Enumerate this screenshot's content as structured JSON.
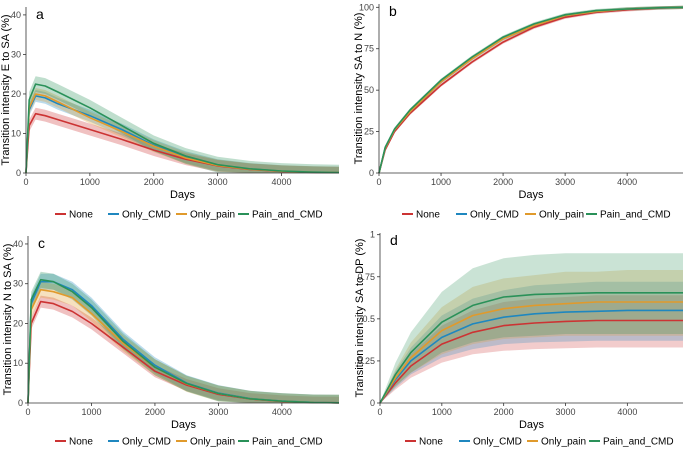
{
  "colors": {
    "None": "#cc3333",
    "Only_CMD": "#1f87bf",
    "Only_pain": "#e09a2c",
    "Pain_and_CMD": "#2a9159"
  },
  "chart_data": [
    {
      "type": "line",
      "panel": "a",
      "xlabel": "Days",
      "ylabel": "Transition intensity E to SA (%)",
      "xlim": [
        0,
        4900
      ],
      "ylim": [
        0,
        42
      ],
      "xticks": [
        0,
        1000,
        2000,
        3000,
        4000
      ],
      "yticks": [
        0,
        10,
        20,
        30,
        40
      ],
      "x": [
        0,
        50,
        150,
        300,
        500,
        1000,
        1500,
        2000,
        2500,
        3000,
        3500,
        4000,
        4500,
        4900
      ],
      "series": [
        {
          "name": "None",
          "values": [
            0,
            12,
            15,
            14.5,
            13.5,
            11,
            8.5,
            5.8,
            3.5,
            1.8,
            0.9,
            0.4,
            0.15,
            0.1
          ],
          "band": 1.5
        },
        {
          "name": "Only_CMD",
          "values": [
            0,
            16,
            19.5,
            19,
            17.5,
            14.5,
            11,
            7,
            4,
            2,
            1,
            0.45,
            0.2,
            0.1
          ],
          "band": 1.5
        },
        {
          "name": "Only_pain",
          "values": [
            0,
            16.5,
            20,
            19.5,
            18,
            14,
            10.5,
            6.8,
            3.8,
            1.9,
            0.95,
            0.45,
            0.2,
            0.1
          ],
          "band": 1.5
        },
        {
          "name": "Pain_and_CMD",
          "values": [
            0,
            18.5,
            22.5,
            22,
            20.5,
            16.5,
            12,
            7.5,
            4.3,
            2.1,
            1.05,
            0.5,
            0.2,
            0.1
          ],
          "band": 2
        }
      ]
    },
    {
      "type": "line",
      "panel": "b",
      "xlabel": "Days",
      "ylabel": "Transition intensity SA to N (%)",
      "xlim": [
        0,
        4900
      ],
      "ylim": [
        0,
        102
      ],
      "xticks": [
        0,
        1000,
        2000,
        3000,
        4000
      ],
      "yticks": [
        0,
        25,
        50,
        75,
        100
      ],
      "x": [
        0,
        100,
        250,
        500,
        1000,
        1500,
        2000,
        2500,
        3000,
        3500,
        4000,
        4500,
        4900
      ],
      "series": [
        {
          "name": "None",
          "values": [
            0,
            14,
            25,
            36,
            53,
            67,
            79,
            88,
            94,
            97,
            98.5,
            99.5,
            100
          ],
          "band": 1
        },
        {
          "name": "Only_CMD",
          "values": [
            0,
            15,
            26,
            37,
            55,
            69,
            81,
            89,
            95,
            97.5,
            99,
            99.7,
            100
          ],
          "band": 1
        },
        {
          "name": "Only_pain",
          "values": [
            0,
            15,
            26,
            37,
            55,
            69,
            81,
            89,
            95,
            97.5,
            99,
            99.7,
            100
          ],
          "band": 1
        },
        {
          "name": "Pain_and_CMD",
          "values": [
            0,
            15.5,
            26.5,
            38,
            56,
            70,
            82,
            90,
            95.5,
            98,
            99,
            99.7,
            100
          ],
          "band": 1
        }
      ]
    },
    {
      "type": "line",
      "panel": "c",
      "xlabel": "Days",
      "ylabel": "Transition intensity N to SA (%)",
      "xlim": [
        0,
        4900
      ],
      "ylim": [
        0,
        42
      ],
      "xticks": [
        0,
        1000,
        2000,
        3000,
        4000
      ],
      "yticks": [
        0,
        10,
        20,
        30,
        40
      ],
      "x": [
        0,
        50,
        200,
        400,
        700,
        1000,
        1500,
        2000,
        2500,
        3000,
        3500,
        4000,
        4500,
        4900
      ],
      "series": [
        {
          "name": "None",
          "values": [
            0,
            20,
            25.5,
            25,
            23,
            20,
            14,
            8,
            4.5,
            2.2,
            1,
            0.4,
            0.1,
            0.05
          ],
          "band": 1.5
        },
        {
          "name": "Only_CMD",
          "values": [
            0,
            25,
            30.5,
            30.5,
            28.5,
            24.5,
            16,
            9.5,
            5,
            2.5,
            1.1,
            0.5,
            0.15,
            0.05
          ],
          "band": 2
        },
        {
          "name": "Only_pain",
          "values": [
            0,
            23.5,
            28.5,
            28,
            26.5,
            22.5,
            15,
            9,
            4.8,
            2.4,
            1.05,
            0.45,
            0.12,
            0.05
          ],
          "band": 2
        },
        {
          "name": "Pain_and_CMD",
          "values": [
            0,
            26,
            31,
            30.5,
            28,
            24,
            15.5,
            9,
            4.9,
            2.4,
            1.05,
            0.45,
            0.12,
            0.05
          ],
          "band": 2
        }
      ]
    },
    {
      "type": "line",
      "panel": "d",
      "xlabel": "Days",
      "ylabel": "Transition intensity SA to DP (%)",
      "xlim": [
        0,
        4900
      ],
      "ylim": [
        0,
        1.01
      ],
      "xticks": [
        0,
        1000,
        2000,
        3000,
        4000
      ],
      "xtick_labels": [
        "0",
        "1000",
        "2000",
        "3000",
        "4000"
      ],
      "yticks": [
        0,
        0.25,
        0.5,
        0.75,
        1
      ],
      "ytick_labels": [
        "0",
        "0.25",
        "0.5",
        "0.75",
        "1"
      ],
      "x": [
        0,
        250,
        500,
        1000,
        1500,
        2000,
        2500,
        3000,
        3500,
        4000,
        4500,
        4900
      ],
      "series": [
        {
          "name": "None",
          "values": [
            0,
            0.12,
            0.22,
            0.35,
            0.42,
            0.46,
            0.475,
            0.485,
            0.49,
            0.49,
            0.49,
            0.49
          ],
          "lower": [
            0,
            0.08,
            0.15,
            0.24,
            0.29,
            0.31,
            0.32,
            0.325,
            0.33,
            0.33,
            0.33,
            0.33
          ],
          "upper": [
            0,
            0.16,
            0.29,
            0.46,
            0.55,
            0.6,
            0.62,
            0.63,
            0.64,
            0.64,
            0.64,
            0.64
          ]
        },
        {
          "name": "Only_CMD",
          "values": [
            0,
            0.14,
            0.25,
            0.39,
            0.47,
            0.51,
            0.53,
            0.54,
            0.545,
            0.55,
            0.55,
            0.55
          ],
          "lower": [
            0,
            0.09,
            0.17,
            0.27,
            0.32,
            0.35,
            0.36,
            0.365,
            0.37,
            0.37,
            0.37,
            0.37
          ],
          "upper": [
            0,
            0.19,
            0.33,
            0.52,
            0.62,
            0.67,
            0.7,
            0.71,
            0.72,
            0.72,
            0.72,
            0.72
          ]
        },
        {
          "name": "Only_pain",
          "values": [
            0,
            0.15,
            0.27,
            0.43,
            0.52,
            0.56,
            0.58,
            0.59,
            0.6,
            0.6,
            0.6,
            0.6
          ],
          "lower": [
            0,
            0.1,
            0.18,
            0.29,
            0.35,
            0.38,
            0.39,
            0.4,
            0.4,
            0.4,
            0.4,
            0.4
          ],
          "upper": [
            0,
            0.2,
            0.36,
            0.57,
            0.69,
            0.74,
            0.76,
            0.78,
            0.78,
            0.79,
            0.79,
            0.79
          ]
        },
        {
          "name": "Pain_and_CMD",
          "values": [
            0,
            0.17,
            0.3,
            0.48,
            0.58,
            0.63,
            0.645,
            0.65,
            0.655,
            0.655,
            0.655,
            0.655
          ],
          "lower": [
            0,
            0.1,
            0.18,
            0.3,
            0.36,
            0.39,
            0.4,
            0.41,
            0.41,
            0.41,
            0.41,
            0.41
          ],
          "upper": [
            0,
            0.24,
            0.42,
            0.66,
            0.8,
            0.86,
            0.88,
            0.89,
            0.89,
            0.89,
            0.89,
            0.89
          ]
        }
      ]
    }
  ],
  "legend": [
    "None",
    "Only_CMD",
    "Only_pain",
    "Pain_and_CMD"
  ]
}
